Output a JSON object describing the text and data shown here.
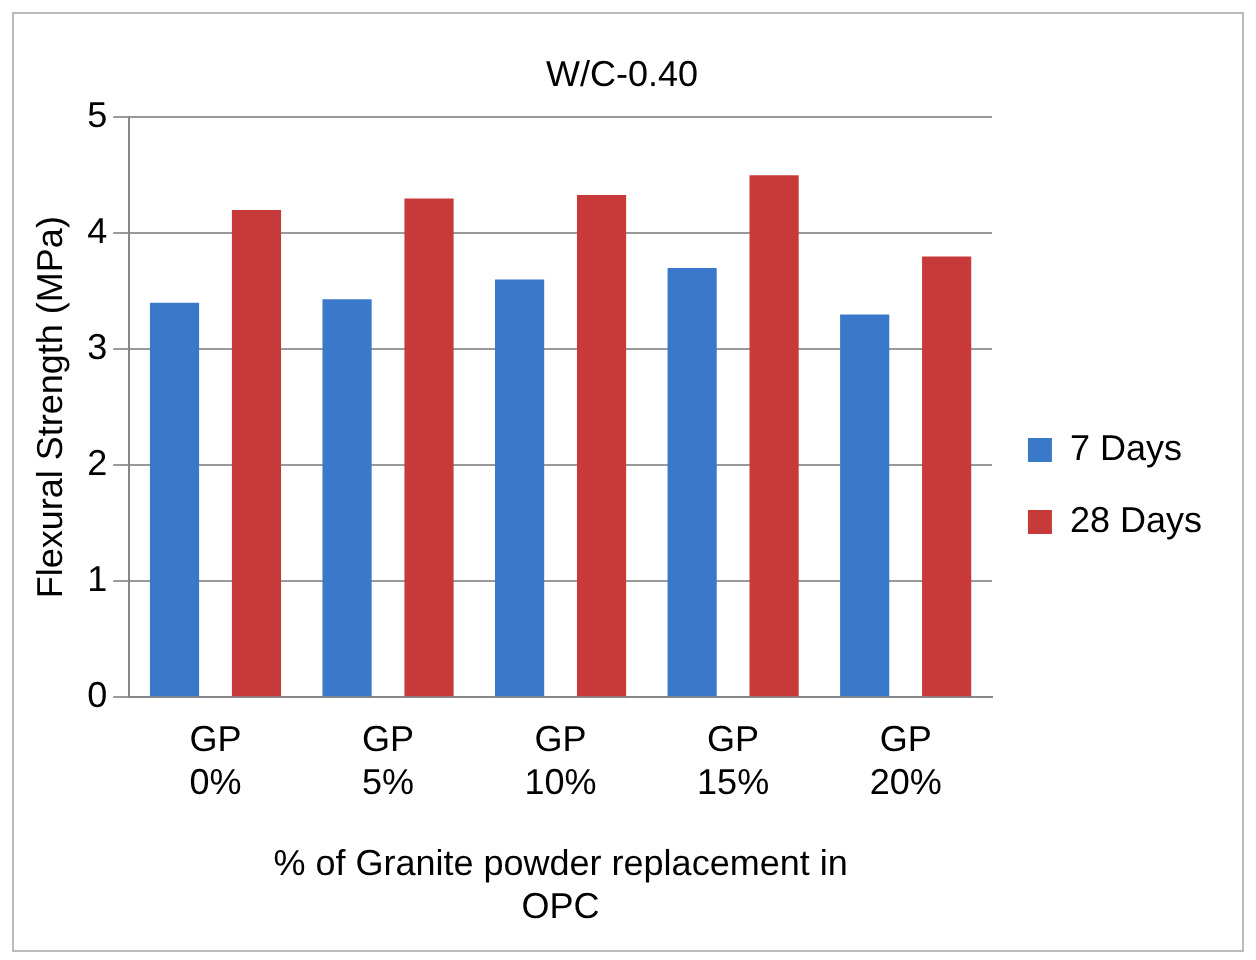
{
  "chart_data": {
    "type": "bar",
    "title": "W/C-0.40",
    "xlabel": "% of Granite powder replacement in OPC",
    "ylabel": "Flexural Strength (MPa)",
    "categories": [
      "GP 0%",
      "GP 5%",
      "GP 10%",
      "GP 15%",
      "GP 20%"
    ],
    "series": [
      {
        "name": "7 Days",
        "color": "#3a78c9",
        "values": [
          3.4,
          3.43,
          3.6,
          3.7,
          3.3
        ]
      },
      {
        "name": "28 Days",
        "color": "#c83a3a",
        "values": [
          4.2,
          4.3,
          4.33,
          4.5,
          3.8
        ]
      }
    ],
    "ylim": [
      0,
      5
    ],
    "yticks": [
      0,
      1,
      2,
      3,
      4,
      5
    ],
    "grid": "y",
    "legend": "right"
  }
}
